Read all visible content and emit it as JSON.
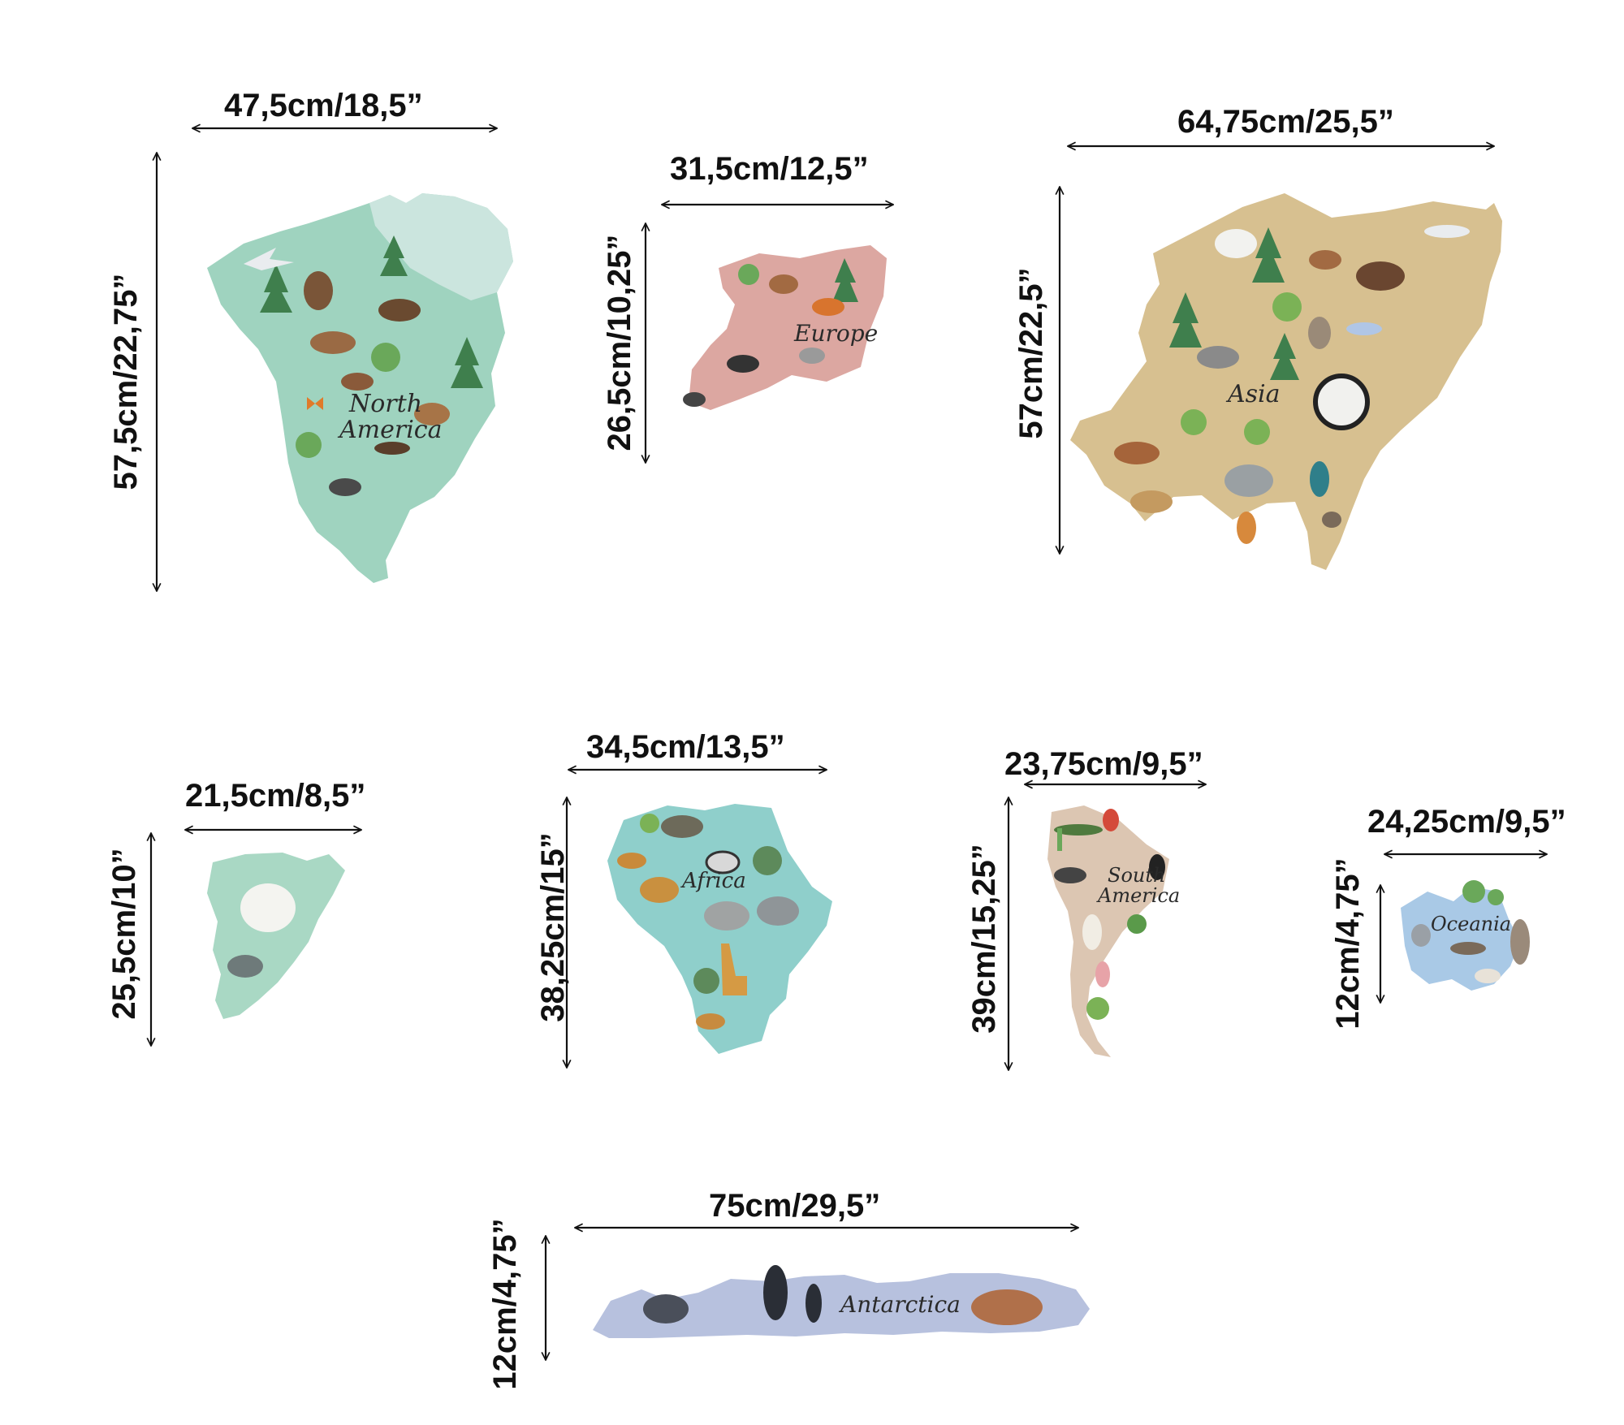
{
  "colors": {
    "north_america": "#9fd3bf",
    "europe": "#dca7a1",
    "asia": "#d7c090",
    "greenland": "#a9d8c4",
    "africa": "#8fcfcb",
    "south_america": "#dcc6b2",
    "oceania": "#a9c9e6",
    "antarctica": "#b7c1de",
    "ink": "#111111"
  },
  "pieces": {
    "north_america": {
      "name_line1": "North",
      "name_line2": "America",
      "width_label": "47,5cm/18,5”",
      "height_label": "57,5cm/22,75”"
    },
    "europe": {
      "name": "Europe",
      "width_label": "31,5cm/12,5”",
      "height_label": "26,5cm/10,25”"
    },
    "asia": {
      "name": "Asia",
      "width_label": "64,75cm/25,5”",
      "height_label": "57cm/22,5”"
    },
    "greenland": {
      "width_label": "21,5cm/8,5”",
      "height_label": "25,5cm/10”"
    },
    "africa": {
      "name": "Africa",
      "width_label": "34,5cm/13,5”",
      "height_label": "38,25cm/15”"
    },
    "south_america": {
      "name_line1": "South",
      "name_line2": "America",
      "width_label": "23,75cm/9,5”",
      "height_label": "39cm/15,25”"
    },
    "oceania": {
      "name": "Oceania",
      "width_label": "24,25cm/9,5”",
      "height_label": "12cm/4,75”"
    },
    "antarctica": {
      "name": "Antarctica",
      "width_label": "75cm/29,5”",
      "height_label": "12cm/4,75”"
    }
  }
}
